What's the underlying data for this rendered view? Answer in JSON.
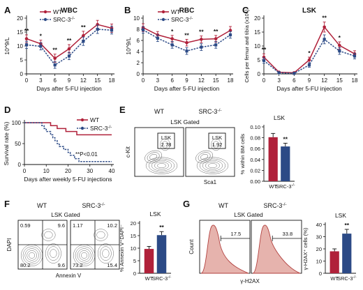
{
  "colors": {
    "wt": "#b0213a",
    "src": "#2c4a86",
    "facs_fill": "#e6b3ad",
    "facs_line": "#b2413f"
  },
  "legend": {
    "wt": "WT",
    "src": "SRC-3",
    "src_sup": "-/-"
  },
  "chart_data": [
    {
      "panel": "A",
      "type": "line",
      "title": "WBC",
      "xlabel": "Days after 5-FU injection",
      "ylabel": "10^9/L",
      "x": [
        0,
        3,
        6,
        9,
        12,
        15,
        18
      ],
      "ylim": [
        0,
        20
      ],
      "yticks": [
        0,
        5,
        10,
        15,
        20
      ],
      "series": [
        {
          "name": "WT",
          "values": [
            12.6,
            10.8,
            5.6,
            9.0,
            13.7,
            17.7,
            16.4
          ],
          "err": [
            1.4,
            1.3,
            1.5,
            1.5,
            1.6,
            1.5,
            1.5
          ]
        },
        {
          "name": "SRC-3-/-",
          "values": [
            10.4,
            9.9,
            3.2,
            6.4,
            11.7,
            16.0,
            15.7
          ],
          "err": [
            1.3,
            1.3,
            1.2,
            1.3,
            1.5,
            1.5,
            1.4
          ]
        }
      ],
      "annotations": [
        {
          "x": 0,
          "text": "**"
        },
        {
          "x": 3,
          "text": "*"
        },
        {
          "x": 6,
          "text": "**"
        },
        {
          "x": 9,
          "text": "**"
        },
        {
          "x": 12,
          "text": "**"
        }
      ]
    },
    {
      "panel": "B",
      "type": "line",
      "title": "RBC",
      "xlabel": "Days after 5-FU injection",
      "ylabel": "10^9/L",
      "x": [
        0,
        3,
        6,
        9,
        12,
        15,
        18
      ],
      "ylim": [
        0,
        10
      ],
      "yticks": [
        0,
        2,
        4,
        6,
        8,
        10
      ],
      "series": [
        {
          "name": "WT",
          "values": [
            8.3,
            7.0,
            6.3,
            5.6,
            6.2,
            6.3,
            7.8
          ],
          "err": [
            0.7,
            0.6,
            0.6,
            0.6,
            0.6,
            0.6,
            0.7
          ]
        },
        {
          "name": "SRC-3-/-",
          "values": [
            7.9,
            6.4,
            5.2,
            4.1,
            4.8,
            5.2,
            7.0
          ],
          "err": [
            0.6,
            0.6,
            0.6,
            0.6,
            0.6,
            0.6,
            0.6
          ]
        }
      ],
      "annotations": [
        {
          "x": 6,
          "text": "*"
        },
        {
          "x": 9,
          "text": "**"
        },
        {
          "x": 12,
          "text": "**"
        },
        {
          "x": 15,
          "text": "**"
        }
      ]
    },
    {
      "panel": "C",
      "type": "line",
      "title": "LSK",
      "xlabel": "Days after 5-FU injection",
      "ylabel": "Cells per femur and tibia (x10⁴)",
      "x": [
        0,
        3,
        6,
        9,
        12,
        15,
        18
      ],
      "ylim": [
        0,
        20
      ],
      "yticks": [
        0,
        5,
        10,
        15,
        20
      ],
      "series": [
        {
          "name": "WT",
          "values": [
            6.0,
            0.6,
            0.4,
            5.0,
            16.8,
            10.2,
            7.2
          ],
          "err": [
            1.2,
            0.3,
            0.3,
            1.0,
            1.8,
            1.3,
            1.1
          ]
        },
        {
          "name": "SRC-3-/-",
          "values": [
            4.8,
            0.4,
            0.2,
            3.2,
            12.4,
            8.2,
            6.4
          ],
          "err": [
            1.0,
            0.3,
            0.3,
            0.8,
            1.6,
            1.2,
            1.0
          ]
        }
      ],
      "annotations": [
        {
          "x": 0,
          "text": "**"
        },
        {
          "x": 9,
          "text": "*"
        },
        {
          "x": 12,
          "text": "**"
        },
        {
          "x": 15,
          "text": "*"
        }
      ]
    },
    {
      "panel": "D",
      "type": "line",
      "subtype": "survival",
      "xlabel": "Days after weekly 5-FU injections",
      "ylabel": "Survival rate (%)",
      "xlim": [
        0,
        40
      ],
      "xticks": [
        0,
        10,
        20,
        30,
        40
      ],
      "ylim": [
        0,
        100
      ],
      "yticks": [
        0,
        50,
        100
      ],
      "annotation": "**P<0.01",
      "series": [
        {
          "name": "WT",
          "steps": [
            [
              0,
              100
            ],
            [
              12,
              100
            ],
            [
              12,
              93
            ],
            [
              15,
              93
            ],
            [
              15,
              86
            ],
            [
              19,
              86
            ],
            [
              19,
              79
            ],
            [
              24,
              79
            ],
            [
              24,
              71
            ],
            [
              40,
              71
            ]
          ]
        },
        {
          "name": "SRC-3-/-",
          "steps": [
            [
              0,
              100
            ],
            [
              8,
              100
            ],
            [
              8,
              93
            ],
            [
              9,
              93
            ],
            [
              9,
              86
            ],
            [
              10,
              86
            ],
            [
              10,
              79
            ],
            [
              12,
              79
            ],
            [
              12,
              71
            ],
            [
              13,
              71
            ],
            [
              13,
              64
            ],
            [
              14,
              64
            ],
            [
              14,
              57
            ],
            [
              15,
              57
            ],
            [
              15,
              50
            ],
            [
              16,
              50
            ],
            [
              16,
              43
            ],
            [
              18,
              43
            ],
            [
              18,
              36
            ],
            [
              20,
              36
            ],
            [
              20,
              29
            ],
            [
              21,
              29
            ],
            [
              21,
              22
            ],
            [
              23,
              22
            ],
            [
              23,
              14
            ],
            [
              25,
              14
            ],
            [
              25,
              7
            ],
            [
              40,
              7
            ]
          ]
        }
      ]
    },
    {
      "panel": "E",
      "type": "bar",
      "title": "LSK",
      "ylabel": "% within BM cells",
      "categories": [
        "WT",
        "SRC-3-/-"
      ],
      "values": [
        0.081,
        0.064
      ],
      "err": [
        0.007,
        0.006
      ],
      "ylim": [
        0,
        0.1
      ],
      "yticks": [
        0.0,
        0.02,
        0.04,
        0.06,
        0.08,
        0.1
      ],
      "annotation": "**",
      "facs": {
        "gate": "LSK Gated",
        "groups": [
          "WT",
          "SRC-3-/-"
        ],
        "gate_label": "LSK",
        "values": [
          "2.78",
          "1.92"
        ],
        "xlabel": "Sca1",
        "ylabel": "c-Kit"
      }
    },
    {
      "panel": "F",
      "type": "bar",
      "title": "LSK",
      "ylabel": "% Annexin V⁺DAPI⁻",
      "categories": [
        "WT",
        "SRC-3-/-"
      ],
      "values": [
        9.7,
        15.2
      ],
      "err": [
        1.0,
        1.4
      ],
      "ylim": [
        0,
        20
      ],
      "yticks": [
        0,
        5,
        10,
        15,
        20
      ],
      "annotation": "**",
      "facs": {
        "gate": "LSK Gated",
        "groups": [
          "WT",
          "SRC-3-/-"
        ],
        "xlabel": "Annexin V",
        "ylabel": "DAPI",
        "quadrants": [
          [
            "0.59",
            "9.6",
            "80.2",
            "9.6"
          ],
          [
            "1.17",
            "10.2",
            "73.2",
            "15.4"
          ]
        ]
      }
    },
    {
      "panel": "G",
      "type": "bar",
      "title": "LSK",
      "ylabel": "γ-H2AX⁺ cells (%)",
      "categories": [
        "WT",
        "SRC-3-/-"
      ],
      "values": [
        18.0,
        32.5
      ],
      "err": [
        2.0,
        3.5
      ],
      "ylim": [
        0,
        40
      ],
      "yticks": [
        0,
        10,
        20,
        30,
        40
      ],
      "annotation": "**",
      "facs": {
        "gate": "LSK Gated",
        "groups": [
          "WT",
          "SRC-3-/-"
        ],
        "xlabel": "γ-H2AX",
        "ylabel": "Count",
        "values": [
          "17.5",
          "33.8"
        ]
      }
    }
  ]
}
